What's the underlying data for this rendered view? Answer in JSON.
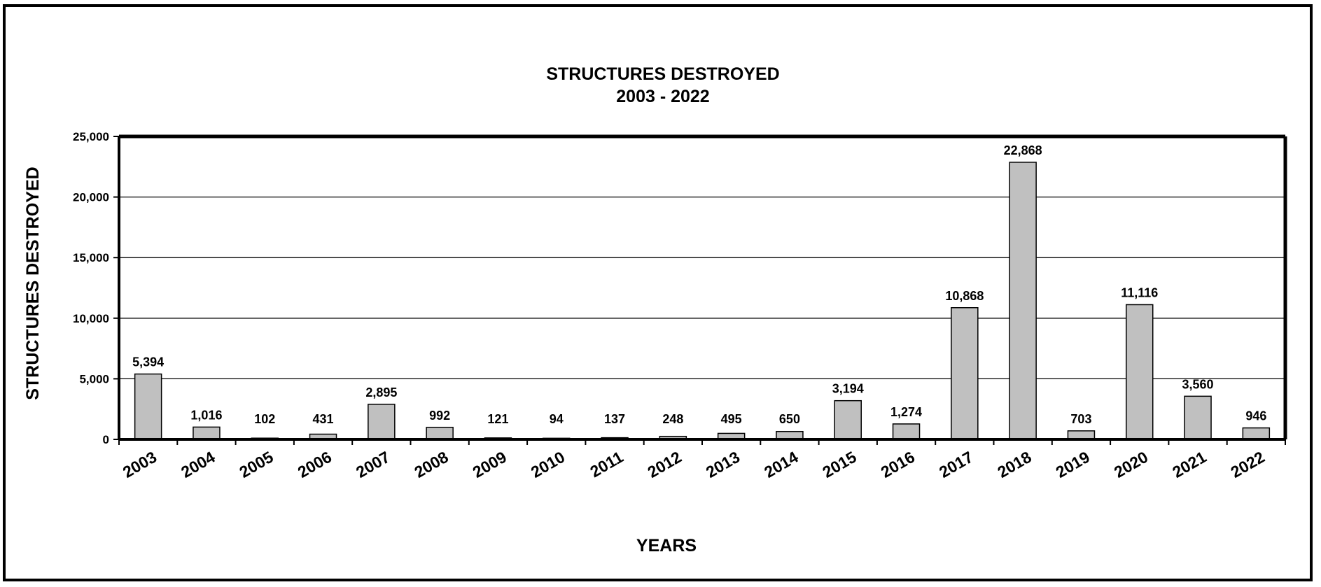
{
  "chart_data": {
    "type": "bar",
    "title": "STRUCTURES DESTROYED",
    "subtitle": "2003 - 2022",
    "xlabel": "YEARS",
    "ylabel": "STRUCTURES DESTROYED",
    "ylim": [
      0,
      25000
    ],
    "yticks": [
      0,
      5000,
      10000,
      15000,
      20000,
      25000
    ],
    "ytick_labels": [
      "0",
      "5,000",
      "10,000",
      "15,000",
      "20,000",
      "25,000"
    ],
    "grid": true,
    "categories": [
      "2003",
      "2004",
      "2005",
      "2006",
      "2007",
      "2008",
      "2009",
      "2010",
      "2011",
      "2012",
      "2013",
      "2014",
      "2015",
      "2016",
      "2017",
      "2018",
      "2019",
      "2020",
      "2021",
      "2022"
    ],
    "values": [
      5394,
      1016,
      102,
      431,
      2895,
      992,
      121,
      94,
      137,
      248,
      495,
      650,
      3194,
      1274,
      10868,
      22868,
      703,
      11116,
      3560,
      946
    ],
    "value_labels": [
      "5,394",
      "1,016",
      "102",
      "431",
      "2,895",
      "992",
      "121",
      "94",
      "137",
      "248",
      "495",
      "650",
      "3,194",
      "1,274",
      "10,868",
      "22,868",
      "703",
      "11,116",
      "3,560",
      "946"
    ],
    "bar_color": "#c0c0c0"
  }
}
